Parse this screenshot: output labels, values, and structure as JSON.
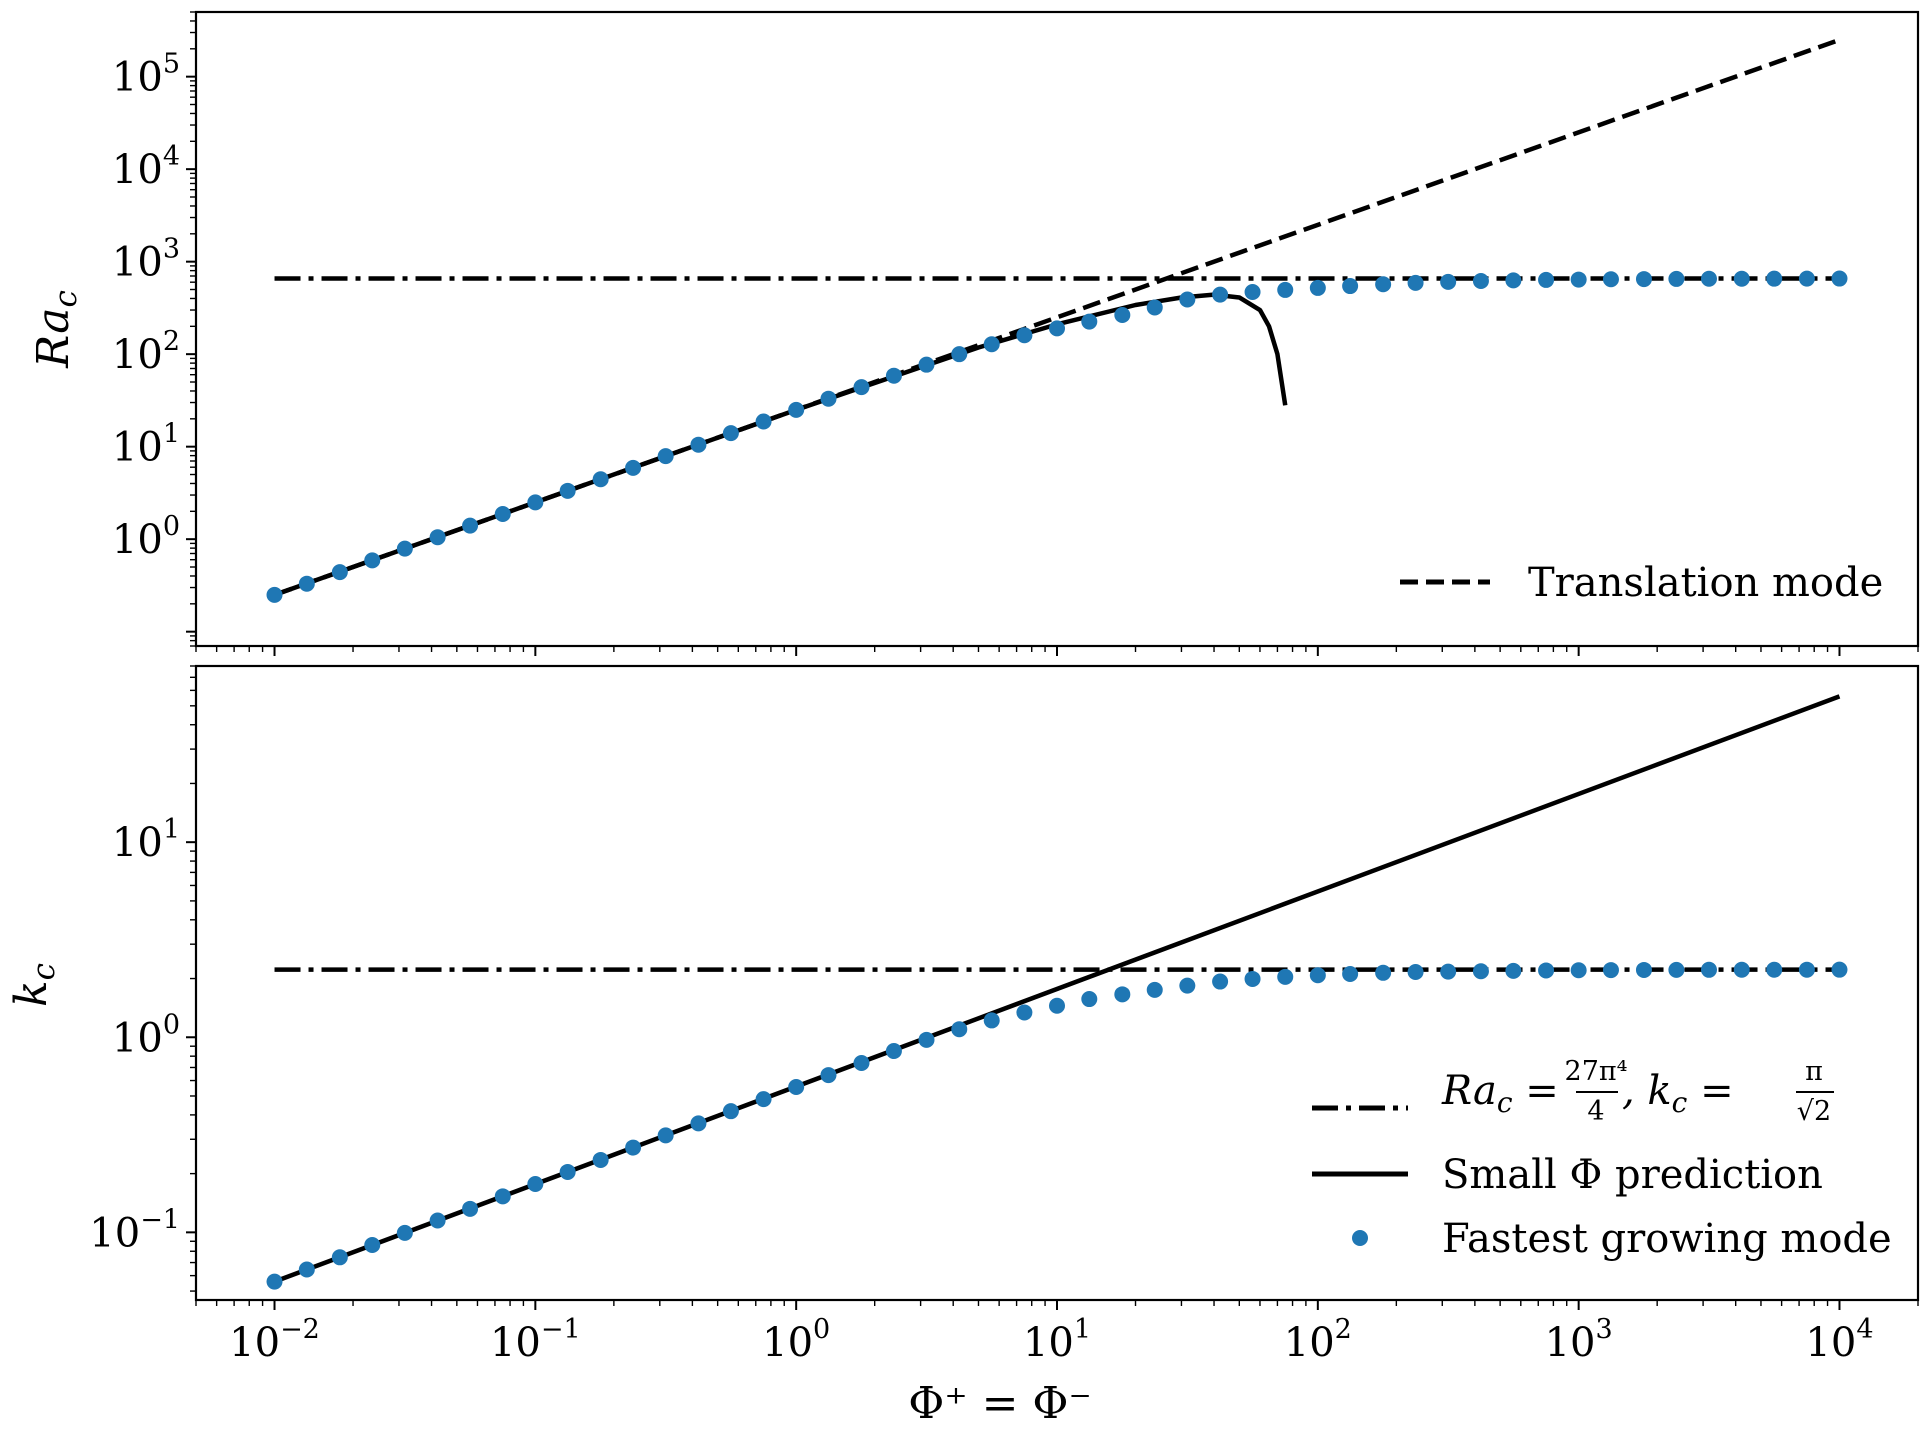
{
  "chart_data": [
    {
      "type": "line",
      "panel": "top",
      "ylabel_main": "Ra",
      "ylabel_sub": "c",
      "xscale": "log",
      "yscale": "log",
      "xlim": [
        0.005,
        20000
      ],
      "ylim": [
        0.07,
        500000
      ],
      "y_tick_labels": [
        {
          "value": 1,
          "base": "10",
          "exp": "0"
        },
        {
          "value": 10,
          "base": "10",
          "exp": "1"
        },
        {
          "value": 100,
          "base": "10",
          "exp": "2"
        },
        {
          "value": 1000,
          "base": "10",
          "exp": "3"
        },
        {
          "value": 10000,
          "base": "10",
          "exp": "4"
        },
        {
          "value": 100000,
          "base": "10",
          "exp": "5"
        }
      ],
      "legend": {
        "position": "lower right",
        "entries": [
          {
            "label": "Translation mode",
            "style": "dashed"
          }
        ]
      },
      "series": [
        {
          "name": "Translation mode",
          "style": "dashed",
          "color": "#000000",
          "x": [
            0.01,
            10000
          ],
          "y": [
            0.25,
            250000
          ]
        },
        {
          "style": "dashdot",
          "color": "#000000",
          "x": [
            0.01,
            10000
          ],
          "y": [
            657.5,
            657.5
          ]
        },
        {
          "style": "solid",
          "color": "#000000",
          "x": [
            0.01,
            0.1,
            1,
            5,
            10,
            20,
            30,
            40,
            50,
            60,
            65,
            70,
            75
          ],
          "y": [
            0.25,
            2.5,
            25,
            118,
            210,
            340,
            410,
            440,
            410,
            300,
            200,
            100,
            28
          ]
        },
        {
          "name": "Fastest growing mode",
          "style": "markers",
          "color": "#1f77b4",
          "x": [
            0.01,
            0.0133,
            0.0178,
            0.0237,
            0.0316,
            0.0422,
            0.0562,
            0.075,
            0.1,
            0.133,
            0.178,
            0.237,
            0.316,
            0.422,
            0.562,
            0.75,
            1,
            1.33,
            1.78,
            2.37,
            3.16,
            4.22,
            5.62,
            7.5,
            10,
            13.3,
            17.8,
            23.7,
            31.6,
            42.2,
            56.2,
            75,
            100,
            133,
            178,
            237,
            316,
            422,
            562,
            750,
            1000,
            1330,
            1780,
            2370,
            3160,
            4220,
            5620,
            7500,
            10000
          ],
          "y": [
            0.25,
            0.33,
            0.44,
            0.59,
            0.79,
            1.05,
            1.4,
            1.87,
            2.5,
            3.33,
            4.44,
            5.9,
            7.9,
            10.5,
            14,
            18.7,
            25,
            33,
            44,
            58.5,
            77,
            100,
            128,
            160,
            190,
            225,
            265,
            320,
            390,
            440,
            470,
            495,
            520,
            545,
            570,
            590,
            605,
            618,
            628,
            635,
            640,
            645,
            648,
            651,
            653,
            654,
            655,
            656,
            657
          ]
        }
      ]
    },
    {
      "type": "line",
      "panel": "bottom",
      "xlabel": "Φ⁺ = Φ⁻",
      "ylabel_main": "k",
      "ylabel_sub": "c",
      "xscale": "log",
      "yscale": "log",
      "xlim": [
        0.005,
        20000
      ],
      "ylim": [
        0.045,
        80
      ],
      "x_tick_labels": [
        {
          "value": 0.01,
          "base": "10",
          "exp": "−2"
        },
        {
          "value": 0.1,
          "base": "10",
          "exp": "−1"
        },
        {
          "value": 1,
          "base": "10",
          "exp": "0"
        },
        {
          "value": 10,
          "base": "10",
          "exp": "1"
        },
        {
          "value": 100,
          "base": "10",
          "exp": "2"
        },
        {
          "value": 1000,
          "base": "10",
          "exp": "3"
        },
        {
          "value": 10000,
          "base": "10",
          "exp": "4"
        }
      ],
      "y_tick_labels": [
        {
          "value": 0.1,
          "base": "10",
          "exp": "−1"
        },
        {
          "value": 1,
          "base": "10",
          "exp": "0"
        },
        {
          "value": 10,
          "base": "10",
          "exp": "1"
        }
      ],
      "legend": {
        "position": "lower right",
        "entries": [
          {
            "label_main": "Ra",
            "label_sub": "c",
            "label_eq": " = ",
            "frac1_num": "27π⁴",
            "frac1_den": "4",
            "label_mid": ", k",
            "label_sub2": "c",
            "label_eq2": " = ",
            "frac2_num": "π",
            "frac2_den": "√2",
            "style": "dashdot"
          },
          {
            "label": "Small Φ prediction",
            "style": "solid"
          },
          {
            "label": "Fastest growing mode",
            "style": "markers"
          }
        ]
      },
      "series": [
        {
          "style": "dashdot",
          "color": "#000000",
          "x": [
            0.01,
            10000
          ],
          "y": [
            2.2214,
            2.2214
          ]
        },
        {
          "name": "Small Φ prediction",
          "style": "solid",
          "color": "#000000",
          "x": [
            0.01,
            10000
          ],
          "y": [
            0.0559,
            55.9
          ]
        },
        {
          "name": "Fastest growing mode",
          "style": "markers",
          "color": "#1f77b4",
          "x": [
            0.01,
            0.0133,
            0.0178,
            0.0237,
            0.0316,
            0.0422,
            0.0562,
            0.075,
            0.1,
            0.133,
            0.178,
            0.237,
            0.316,
            0.422,
            0.562,
            0.75,
            1,
            1.33,
            1.78,
            2.37,
            3.16,
            4.22,
            5.62,
            7.5,
            10,
            13.3,
            17.8,
            23.7,
            31.6,
            42.2,
            56.2,
            75,
            100,
            133,
            178,
            237,
            316,
            422,
            562,
            750,
            1000,
            1330,
            1780,
            2370,
            3160,
            4220,
            5620,
            7500,
            10000
          ],
          "y": [
            0.0559,
            0.0645,
            0.0745,
            0.0861,
            0.0994,
            0.115,
            0.132,
            0.153,
            0.177,
            0.204,
            0.235,
            0.272,
            0.314,
            0.362,
            0.418,
            0.482,
            0.556,
            0.64,
            0.738,
            0.85,
            0.97,
            1.1,
            1.22,
            1.34,
            1.45,
            1.57,
            1.66,
            1.75,
            1.84,
            1.93,
            1.99,
            2.04,
            2.08,
            2.11,
            2.14,
            2.16,
            2.17,
            2.18,
            2.19,
            2.2,
            2.205,
            2.21,
            2.213,
            2.215,
            2.217,
            2.218,
            2.219,
            2.22,
            2.221
          ]
        }
      ]
    }
  ]
}
